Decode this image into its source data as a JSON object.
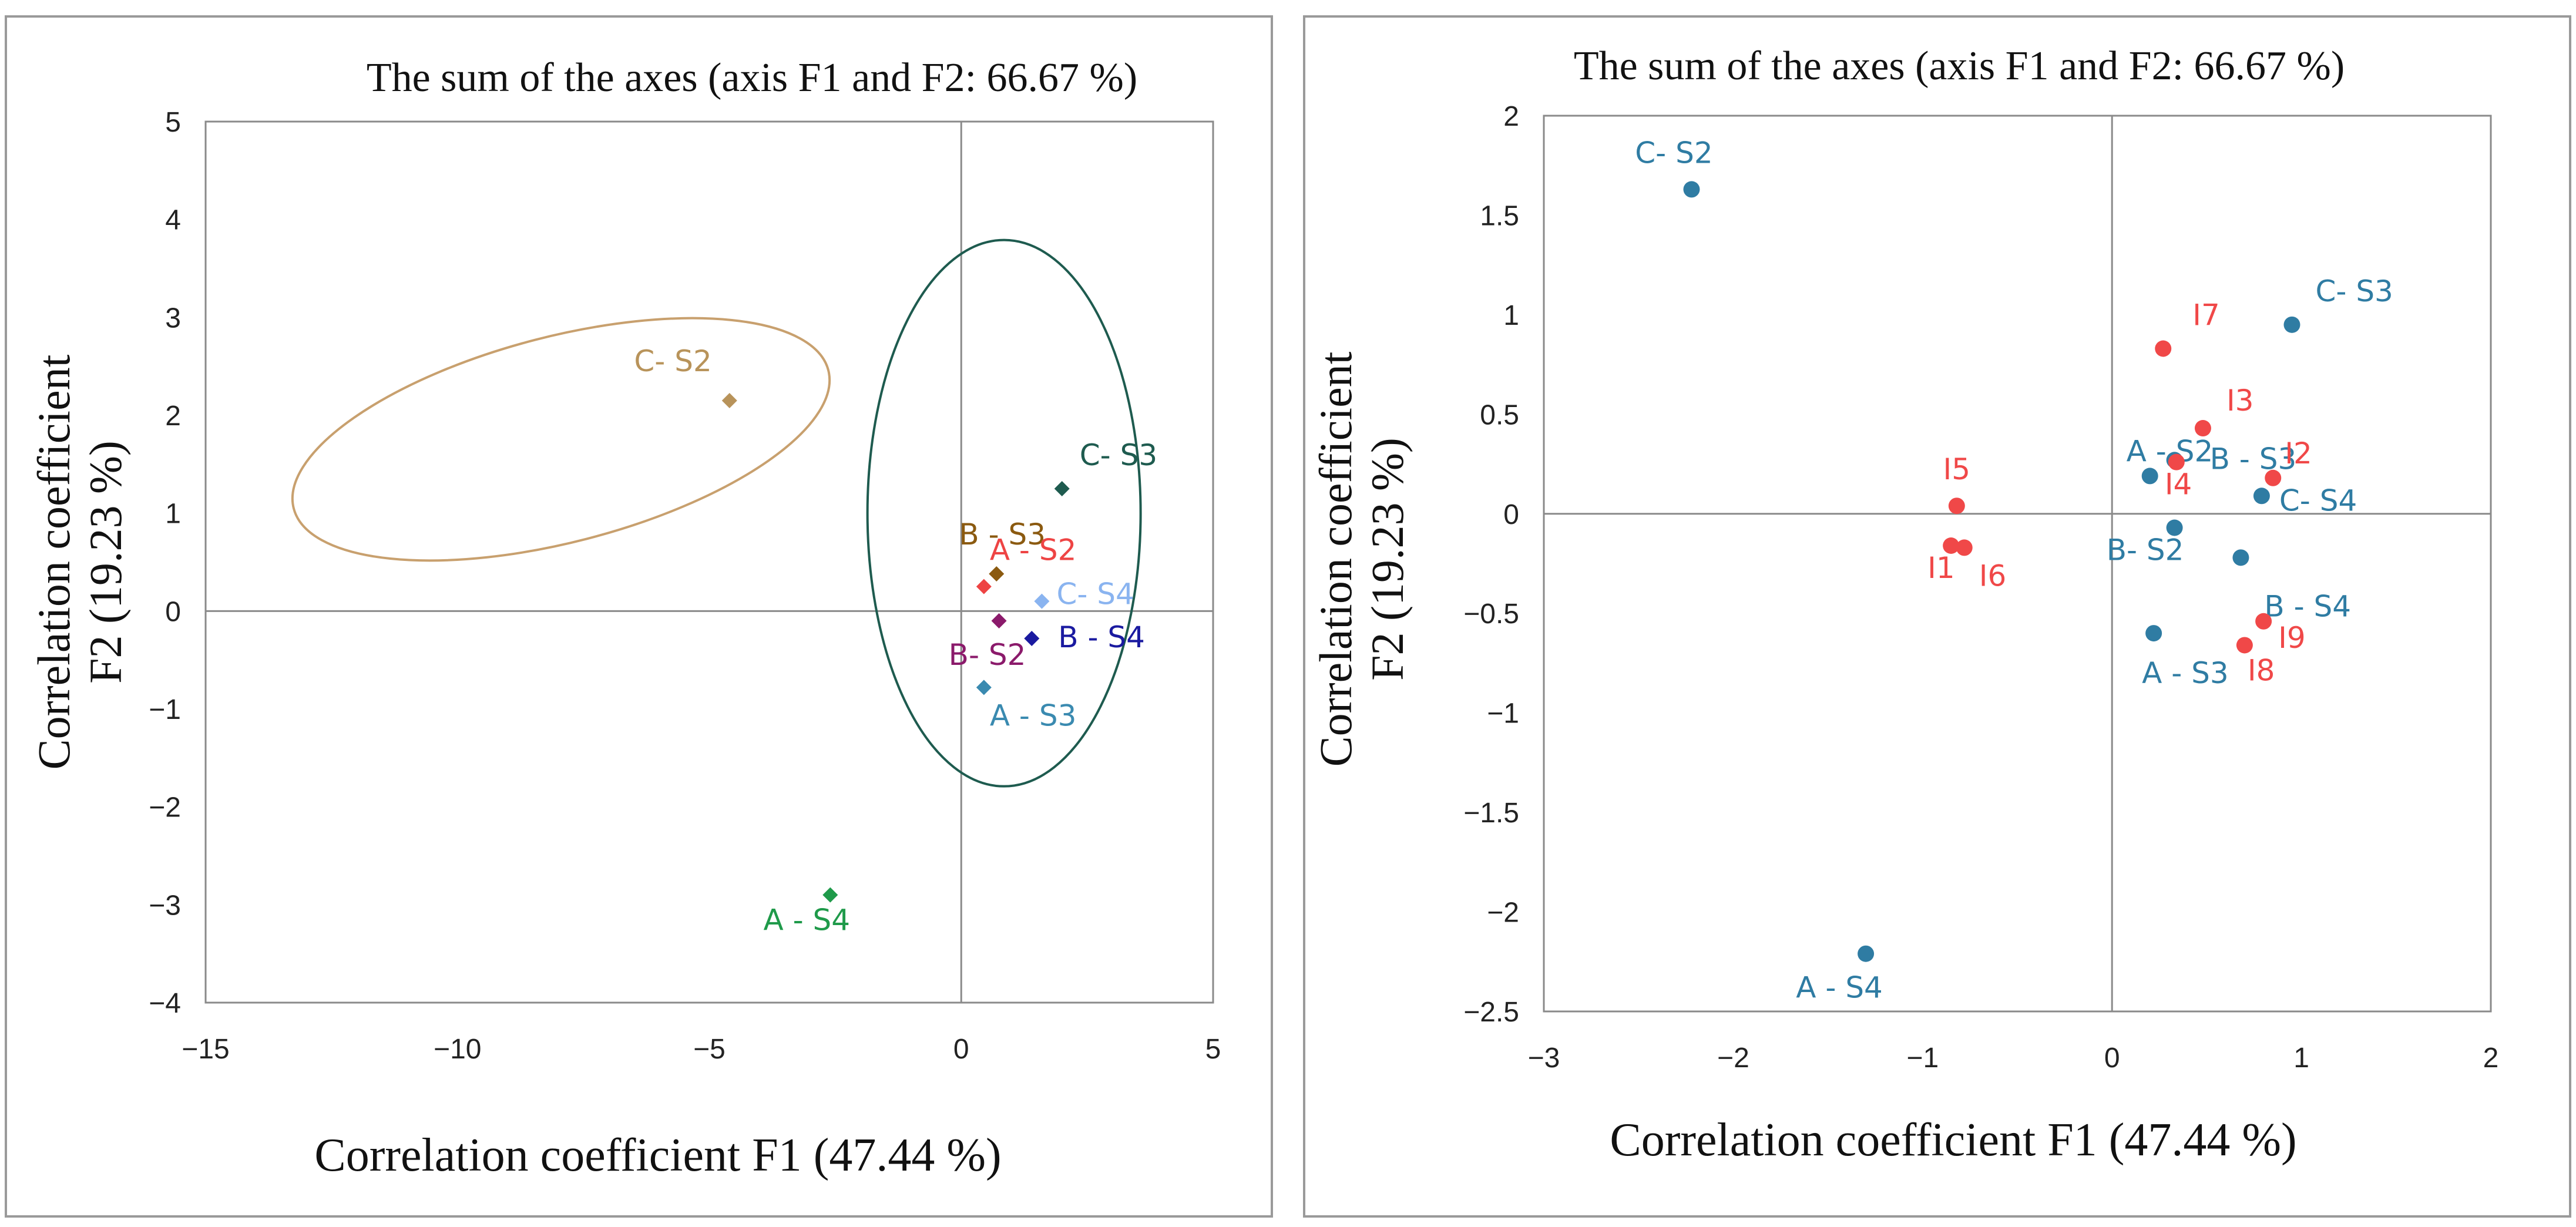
{
  "chart_data": [
    {
      "type": "scatter",
      "title": "The sum of the axes (axis F1 and F2: 66.67 %)",
      "xlabel": "Correlation coefficient F1 (47.44 %)",
      "ylabel": [
        "Correlation coefficient",
        "F2 (19.23 %)"
      ],
      "xlim": [
        -15,
        5
      ],
      "ylim": [
        -4,
        5
      ],
      "xticks": [
        -15,
        -10,
        -5,
        0,
        5
      ],
      "yticks": [
        -4,
        -3,
        -2,
        -1,
        0,
        1,
        2,
        3,
        4,
        5
      ],
      "marker": "diamond",
      "points": [
        {
          "label": "C- S2",
          "x": -4.6,
          "y": 2.15,
          "color": "#b8935a"
        },
        {
          "label": "C- S3",
          "x": 2.0,
          "y": 1.25,
          "color": "#1e5b4f"
        },
        {
          "label": "B - S3",
          "x": 0.7,
          "y": 0.38,
          "color": "#8b5a10"
        },
        {
          "label": "A - S2",
          "x": 0.45,
          "y": 0.25,
          "color": "#ee4444"
        },
        {
          "label": "C- S4",
          "x": 1.6,
          "y": 0.1,
          "color": "#8ab4f0"
        },
        {
          "label": "B- S2",
          "x": 0.75,
          "y": -0.1,
          "color": "#8b1a6b"
        },
        {
          "label": "B - S4",
          "x": 1.4,
          "y": -0.28,
          "color": "#1a1aa0"
        },
        {
          "label": "A - S3",
          "x": 0.45,
          "y": -0.78,
          "color": "#3a8ab0"
        },
        {
          "label": "A - S4",
          "x": -2.6,
          "y": -2.9,
          "color": "#1f9a4a"
        }
      ],
      "ellipses": [
        {
          "cx": -5.0,
          "cy": 1.35,
          "rx": 6.3,
          "ry": 1.05,
          "angle_deg": -14.5,
          "color": "#c8a06e"
        },
        {
          "cx": 0.85,
          "cy": 1.0,
          "rx": 3.2,
          "ry": 3.2,
          "angle_deg": 0,
          "color": "#1e5b4f"
        }
      ],
      "grid": false,
      "legend": "none"
    },
    {
      "type": "scatter",
      "title": "The sum of the axes (axis F1 and F2: 66.67 %)",
      "xlabel": "Correlation coefficient F1 (47.44 %)",
      "ylabel": [
        "Correlation coefficient",
        "F2 (19.23 %)"
      ],
      "xlim": [
        -3,
        2
      ],
      "ylim": [
        -2.5,
        2
      ],
      "xticks": [
        -3,
        -2,
        -1,
        0,
        1,
        2
      ],
      "yticks": [
        -2.5,
        -2,
        -1.5,
        -1,
        -0.5,
        0,
        0.5,
        1,
        1.5,
        2
      ],
      "marker": "circle",
      "series": [
        {
          "color": "#2f7ca3",
          "points": [
            {
              "label": "C- S2",
              "x": -2.22,
              "y": 1.63
            },
            {
              "label": "C- S3",
              "x": 0.95,
              "y": 0.95
            },
            {
              "label": "A - S2",
              "x": 0.2,
              "y": 0.19
            },
            {
              "label": "B - S3",
              "x": 0.33,
              "y": 0.27
            },
            {
              "label": "C- S4",
              "x": 0.79,
              "y": 0.09
            },
            {
              "label": "B- S2",
              "x": 0.33,
              "y": -0.07
            },
            {
              "label": "B - S4",
              "x": 0.68,
              "y": -0.22
            },
            {
              "label": "A - S3",
              "x": 0.22,
              "y": -0.6
            },
            {
              "label": "A - S4",
              "x": -1.3,
              "y": -2.21
            }
          ]
        },
        {
          "color": "#f04848",
          "points": [
            {
              "label": "I7",
              "x": 0.27,
              "y": 0.83
            },
            {
              "label": "I3",
              "x": 0.48,
              "y": 0.43
            },
            {
              "label": "I2",
              "x": 0.85,
              "y": 0.18
            },
            {
              "label": "I4",
              "x": 0.34,
              "y": 0.26
            },
            {
              "label": "I5",
              "x": -0.82,
              "y": 0.04
            },
            {
              "label": "I1",
              "x": -0.85,
              "y": -0.16
            },
            {
              "label": "I6",
              "x": -0.78,
              "y": -0.17
            },
            {
              "label": "I9",
              "x": 0.8,
              "y": -0.54
            },
            {
              "label": "I8",
              "x": 0.7,
              "y": -0.66
            }
          ]
        }
      ],
      "grid": false,
      "legend": "none"
    }
  ]
}
